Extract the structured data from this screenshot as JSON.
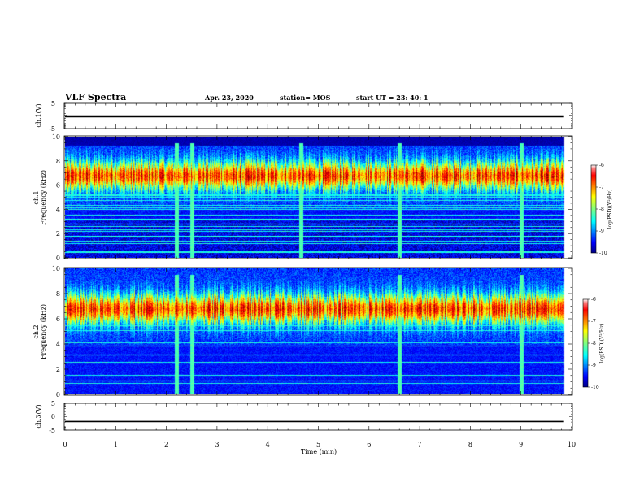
{
  "header": {
    "title": "VLF Spectra",
    "date": "Apr. 23, 2020",
    "station": "station= MOS",
    "start": "start  UT =   23: 40: 1"
  },
  "chart_data": [
    {
      "type": "line",
      "panel": "ch1-waveform",
      "ylabel": "ch.1(V)",
      "ylim": [
        -5,
        5
      ],
      "yticks": [
        "5",
        "-5"
      ],
      "x": [
        0,
        9.85
      ],
      "y": [
        0,
        0
      ],
      "xlim": [
        0,
        10
      ]
    },
    {
      "type": "heatmap",
      "panel": "ch1-spectrogram",
      "ylabel": "ch.1",
      "ylabel2": "Frequency  (kHz)",
      "ylim": [
        0,
        10
      ],
      "xlim": [
        0,
        10
      ],
      "yticks": [
        "0",
        "2",
        "4",
        "6",
        "8",
        "10"
      ],
      "colorbar": {
        "label": "log(PSD)(V²/Hz)",
        "ticks": [
          "-6",
          "-7",
          "-8",
          "-9",
          "-10"
        ],
        "range": [
          -10,
          -6
        ]
      },
      "band_center_khz": 6.8,
      "background_khz_above": 9.3,
      "bursts_min": [
        2.2,
        2.5,
        4.65,
        6.6,
        9.0
      ],
      "data_end_min": 9.85
    },
    {
      "type": "heatmap",
      "panel": "ch2-spectrogram",
      "ylabel": "ch.2",
      "ylabel2": "Frequency  (kHz)",
      "ylim": [
        0,
        10
      ],
      "xlim": [
        0,
        10
      ],
      "yticks": [
        "0",
        "2",
        "4",
        "6",
        "8",
        "10"
      ],
      "colorbar": {
        "label": "log(PSD)(V²/Hz)",
        "ticks": [
          "-6",
          "-7",
          "-8",
          "-9",
          "-10"
        ],
        "range": [
          -10,
          -6
        ]
      },
      "band_center_khz": 6.8,
      "bursts_min": [
        2.2,
        2.5,
        6.6,
        9.0
      ],
      "data_end_min": 9.85
    },
    {
      "type": "line",
      "panel": "ch3-waveform",
      "ylabel": "ch.3(V)",
      "ylim": [
        -5,
        5
      ],
      "yticks": [
        "5",
        "0",
        "-5"
      ],
      "x": [
        0,
        9.85
      ],
      "y": [
        -1.5,
        -1.5
      ],
      "xlim": [
        0,
        10
      ],
      "xlabel": "Time  (min)",
      "xticks": [
        "0",
        "1",
        "2",
        "3",
        "4",
        "5",
        "6",
        "7",
        "8",
        "9",
        "10"
      ]
    }
  ],
  "colors": {
    "jet": [
      "#000080",
      "#0000ff",
      "#0080ff",
      "#00ffff",
      "#80ff80",
      "#ffff00",
      "#ff8000",
      "#ff0000",
      "#800000"
    ]
  }
}
